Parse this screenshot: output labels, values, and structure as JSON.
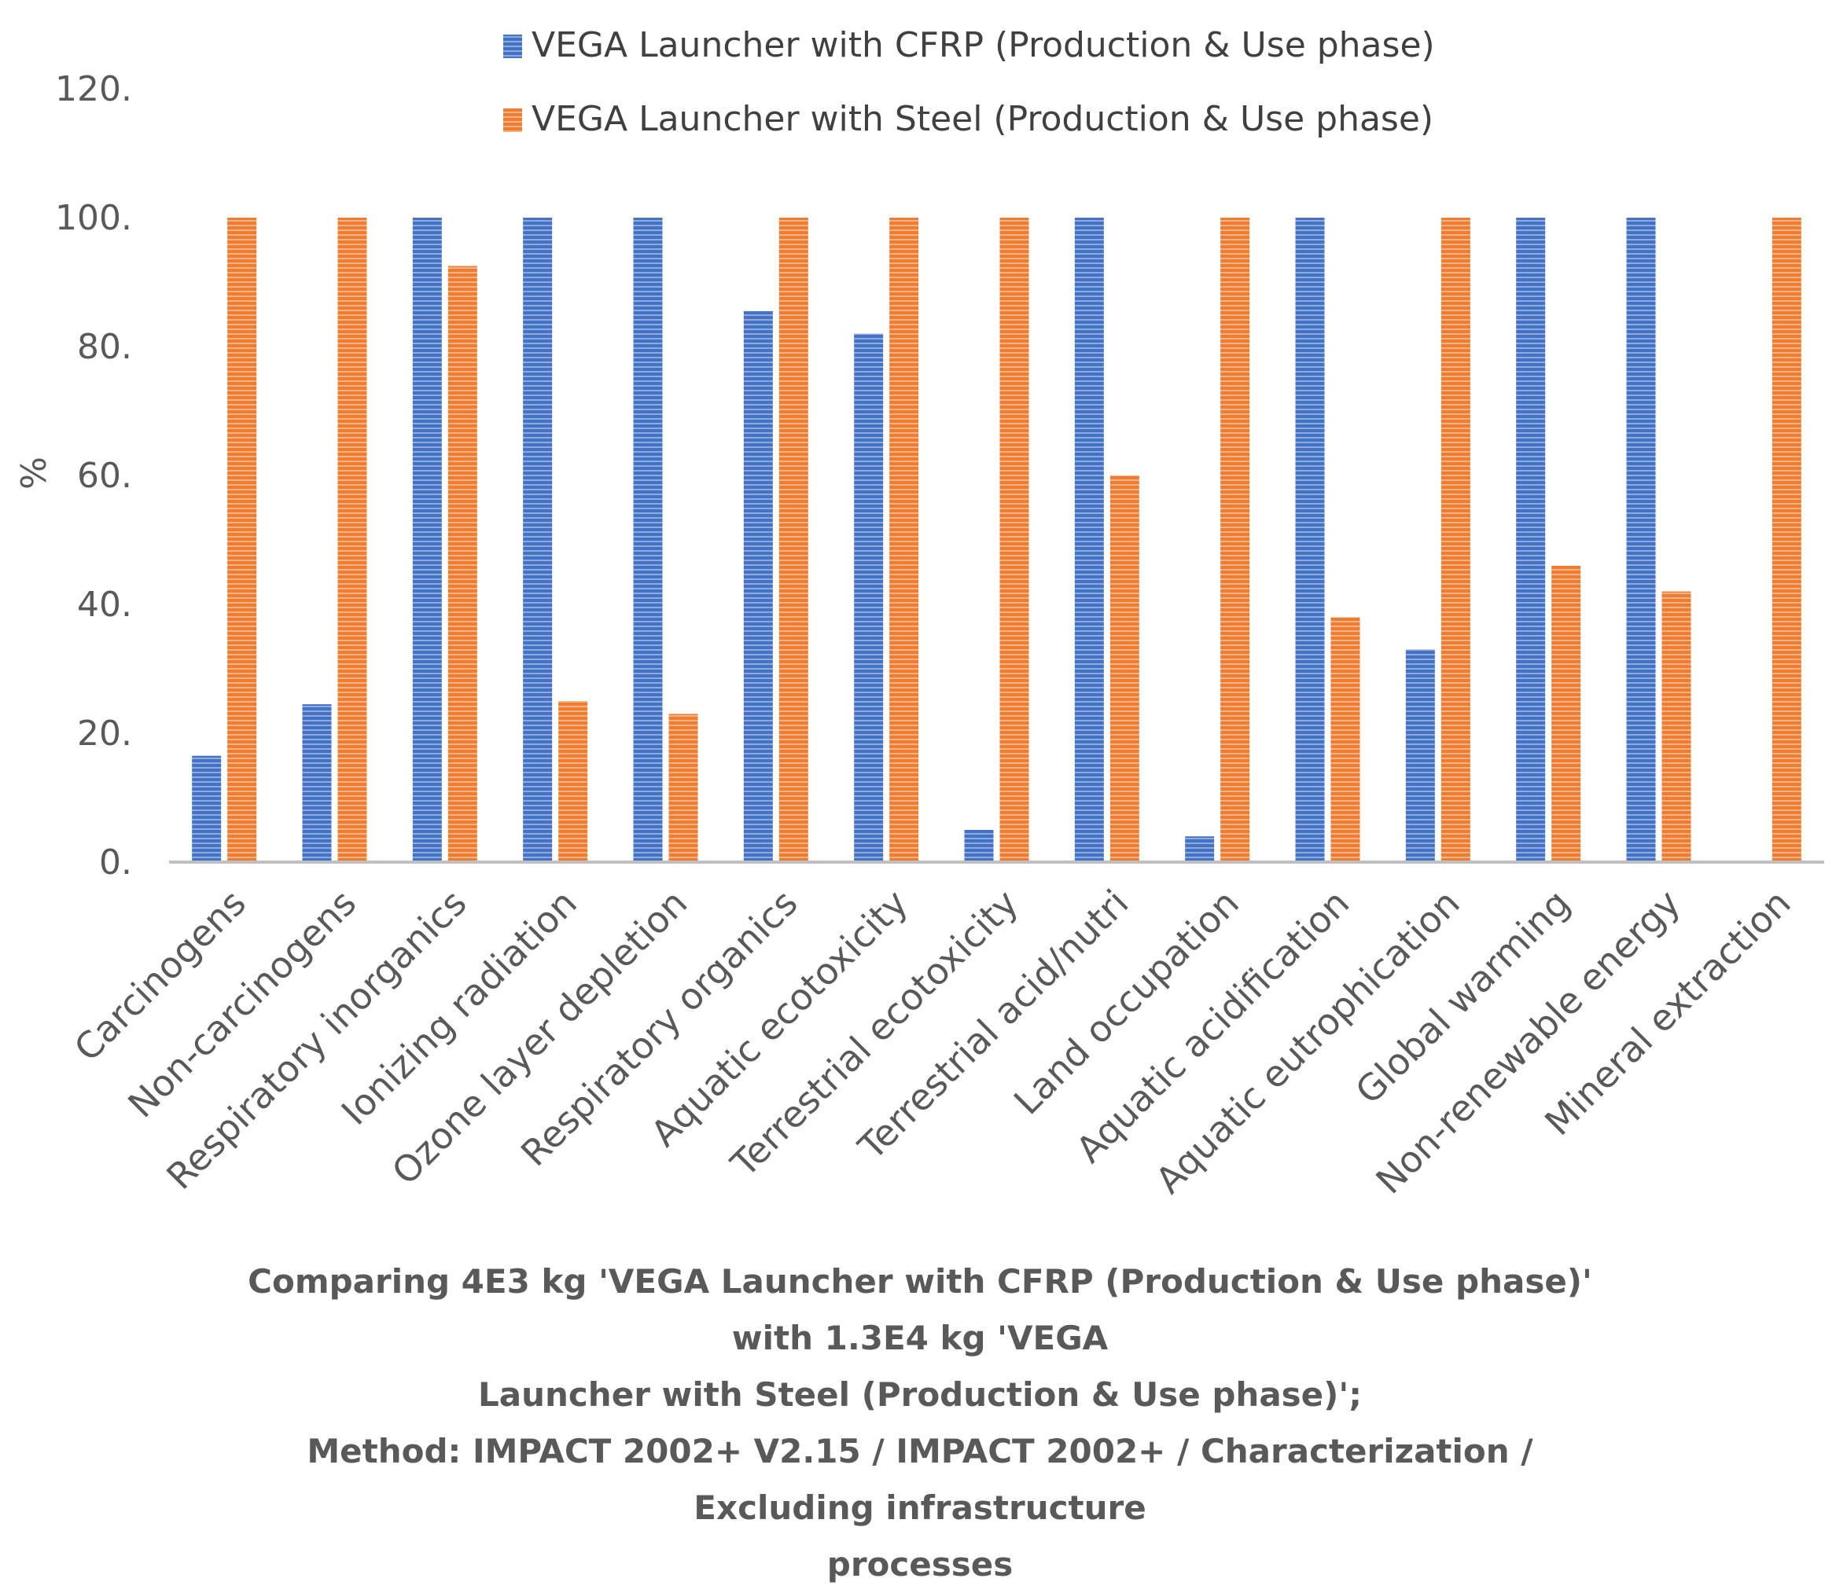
{
  "chart_data": {
    "type": "bar",
    "title": "",
    "xlabel": "",
    "ylabel": "%",
    "ylim": [
      0,
      120
    ],
    "yticks": [
      "0.",
      "20.",
      "40.",
      "60.",
      "80.",
      "100.",
      "120."
    ],
    "grid": false,
    "legend_position": "top-center",
    "categories": [
      "Carcinogens",
      "Non-carcinogens",
      "Respiratory inorganics",
      "Ionizing radiation",
      "Ozone layer depletion",
      "Respiratory organics",
      "Aquatic ecotoxicity",
      "Terrestrial ecotoxicity",
      "Terrestrial acid/nutri",
      "Land occupation",
      "Aquatic acidification",
      "Aquatic eutrophication",
      "Global warming",
      "Non-renewable energy",
      "Mineral extraction"
    ],
    "series": [
      {
        "name": "VEGA Launcher with CFRP (Production & Use phase)",
        "color": "#4472C4",
        "values": [
          16.5,
          24.5,
          100,
          100,
          100,
          85.5,
          82,
          5,
          100,
          4,
          100,
          33,
          100,
          100,
          0
        ]
      },
      {
        "name": "VEGA Launcher with Steel (Production & Use phase)",
        "color": "#ED7D31",
        "values": [
          100,
          100,
          92.5,
          25,
          23,
          100,
          100,
          100,
          60,
          100,
          38,
          100,
          46,
          42,
          100
        ]
      }
    ],
    "caption_lines": [
      "Comparing 4E3 kg 'VEGA Launcher with CFRP (Production & Use phase)' with 1.3E4 kg 'VEGA",
      "Launcher with Steel (Production & Use phase)';",
      "Method: IMPACT 2002+ V2.15 / IMPACT 2002+ / Characterization / Excluding infrastructure",
      "processes"
    ]
  }
}
